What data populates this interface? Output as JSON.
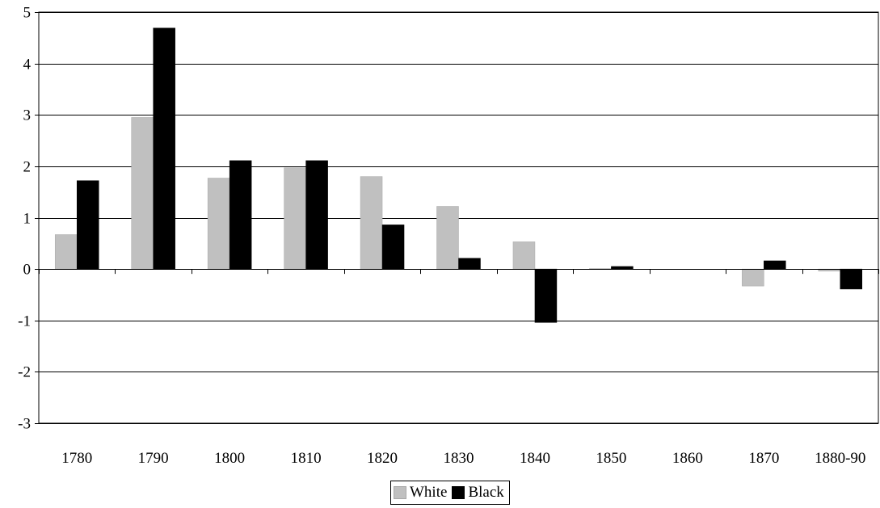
{
  "chart_data": {
    "type": "bar",
    "categories": [
      "1780",
      "1790",
      "1800",
      "1810",
      "1820",
      "1830",
      "1840",
      "1850",
      "1860",
      "1870",
      "1880-90"
    ],
    "series": [
      {
        "name": "White",
        "color": "#c0c0c0",
        "values": [
          0.67,
          2.95,
          1.77,
          1.97,
          1.8,
          1.22,
          0.53,
          0.01,
          0.0,
          -0.33,
          -0.04
        ]
      },
      {
        "name": "Black",
        "color": "#000000",
        "values": [
          1.72,
          4.69,
          2.11,
          2.11,
          0.86,
          0.21,
          -1.04,
          0.05,
          0.0,
          0.16,
          -0.39
        ]
      }
    ],
    "ylim": [
      -3,
      5
    ],
    "yticks": [
      -3,
      -2,
      -1,
      0,
      1,
      2,
      3,
      4,
      5
    ],
    "title": "",
    "xlabel": "",
    "ylabel": "",
    "grid": true,
    "legend": "bottom-center"
  }
}
